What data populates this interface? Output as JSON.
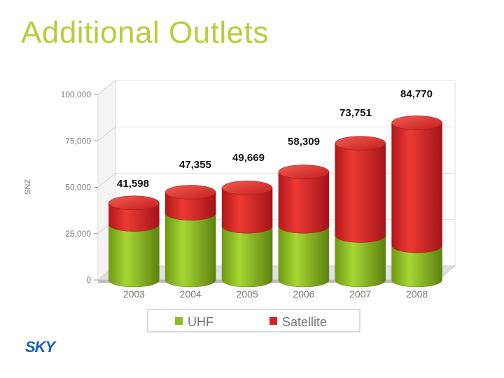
{
  "slide": {
    "title": "Additional Outlets"
  },
  "colors": {
    "uhf": "#8cbe1e",
    "satellite": "#d9221f",
    "title": "#b9cc3c",
    "logo": "#1f5fb8"
  },
  "logo": {
    "icon": "sky-logo-icon",
    "text": "SKY"
  },
  "chart_data": {
    "type": "bar",
    "stacked": true,
    "style": "3d-cylinder",
    "title": "",
    "xlabel": "",
    "ylabel": "SNZ",
    "ylim": [
      0,
      100000
    ],
    "yticks": [
      0,
      25000,
      50000,
      75000,
      100000
    ],
    "ytick_labels": [
      "0",
      "25,000",
      "50,000",
      "75,000",
      "100,000"
    ],
    "categories": [
      "2003",
      "2004",
      "2005",
      "2006",
      "2007",
      "2008"
    ],
    "series": [
      {
        "name": "UHF",
        "color": "#8cbe1e",
        "values": [
          30000,
          36000,
          29000,
          29000,
          24000,
          18500
        ]
      },
      {
        "name": "Satellite",
        "color": "#d9221f",
        "values": [
          11598,
          11355,
          20669,
          29309,
          49751,
          66270
        ]
      }
    ],
    "totals": [
      41598,
      47355,
      49669,
      58309,
      73751,
      84770
    ],
    "total_labels": [
      "41,598",
      "47,355",
      "49,669",
      "58,309",
      "73,751",
      "84,770"
    ],
    "grid": true,
    "legend": {
      "position": "bottom",
      "entries": [
        "UHF",
        "Satellite"
      ]
    }
  }
}
